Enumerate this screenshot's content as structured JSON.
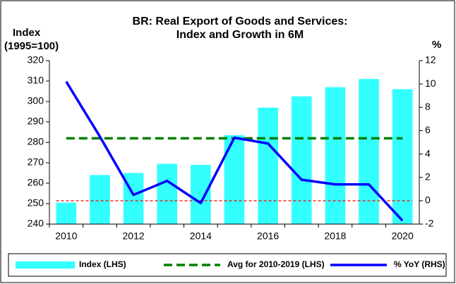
{
  "chart_data": {
    "type": "combo",
    "title": [
      "BR: Real Export of Goods and Services:",
      "Index and Growth in 6M"
    ],
    "y_label": [
      "Index",
      "(1995=100)"
    ],
    "y2_label": "%",
    "categories": [
      2010,
      null,
      2012,
      null,
      2014,
      null,
      2016,
      null,
      2018,
      null,
      2020
    ],
    "series": [
      {
        "name": "Index (LHS)",
        "type": "bar",
        "color": "#33ffff",
        "values": [
          250.5,
          264,
          265,
          269.5,
          269,
          283.5,
          297,
          302.5,
          307,
          311,
          306
        ]
      },
      {
        "name": "Avg for 2010-2019 (LHS)",
        "type": "line",
        "dashed": true,
        "color": "#008000",
        "values": [
          282,
          282,
          282,
          282,
          282,
          282,
          282,
          282,
          282,
          282,
          282
        ]
      },
      {
        "name": "% YoY (RHS)",
        "type": "line",
        "axis": "y2",
        "color": "#0000ff",
        "values": [
          10.2,
          5.5,
          0.5,
          1.7,
          -0.2,
          5.4,
          4.9,
          1.8,
          1.4,
          1.4,
          -1.7
        ]
      }
    ],
    "ylim": [
      240,
      320
    ],
    "yticks": [
      240,
      250,
      260,
      270,
      280,
      290,
      300,
      310,
      320
    ],
    "y2lim": [
      -2,
      12
    ],
    "y2ticks": [
      -2,
      0,
      2,
      4,
      6,
      8,
      10,
      12
    ],
    "y2_zero_line": {
      "color": "#ff0000"
    },
    "legend": "bottom"
  }
}
